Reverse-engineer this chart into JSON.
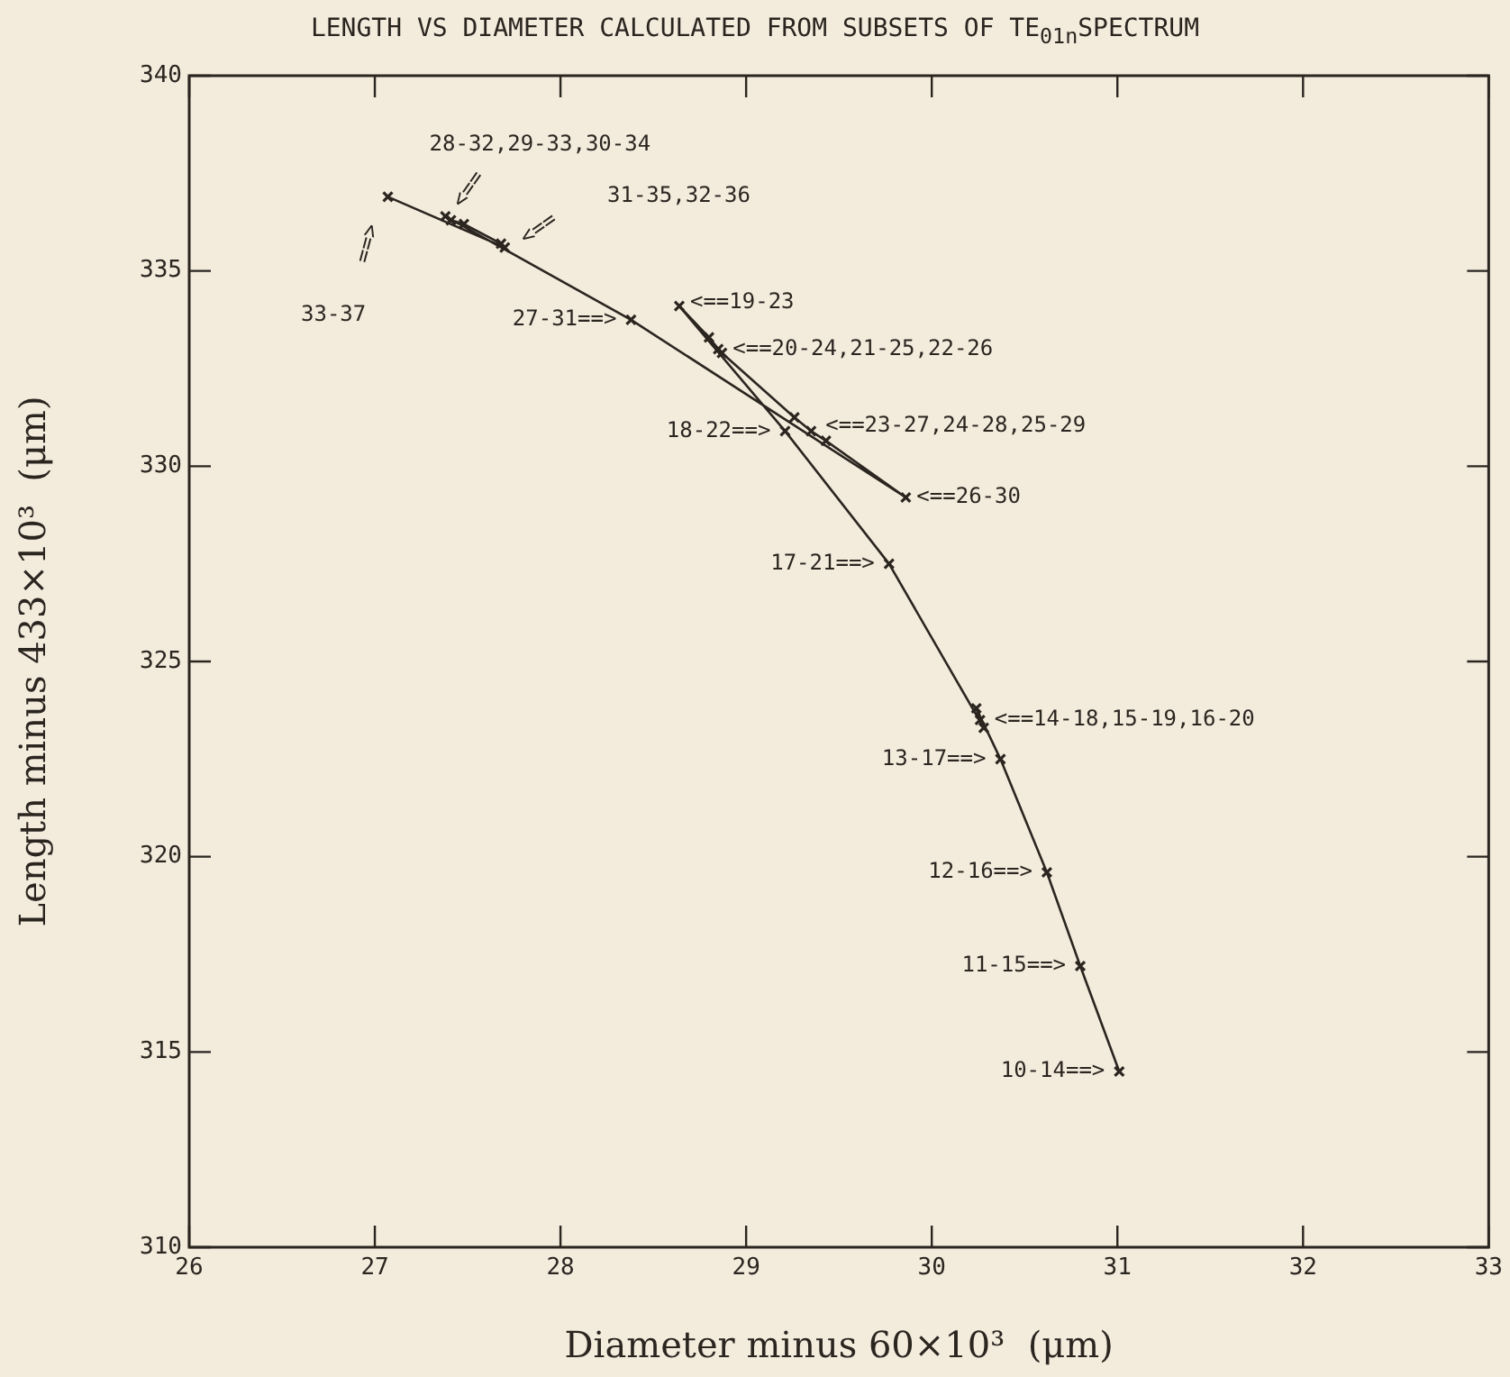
{
  "chart_data": {
    "type": "line",
    "title": "LENGTH VS DIAMETER CALCULATED FROM SUBSETS OF TE$_{01n}$SPECTRUM",
    "xlabel": "Diameter minus 60×10³  (μm)",
    "ylabel": "Length minus 433×10³  (μm)",
    "series": [
      {
        "color": "#2b2520",
        "x": [
          31.01,
          30.8,
          30.62,
          30.37,
          30.24,
          30.26,
          30.28,
          29.77,
          29.21,
          28.64,
          28.8,
          28.85,
          28.87,
          29.26,
          29.35,
          29.43,
          29.86,
          28.38,
          27.38,
          27.41,
          27.48,
          27.68,
          27.7,
          27.07
        ],
        "values": [
          314.5,
          317.2,
          319.6,
          322.5,
          323.8,
          323.5,
          323.3,
          327.5,
          330.9,
          334.1,
          333.3,
          333.0,
          332.9,
          331.25,
          330.9,
          330.65,
          329.2,
          333.75,
          336.4,
          336.3,
          336.2,
          335.7,
          335.6,
          336.9
        ]
      }
    ],
    "xlim": [
      26,
      33
    ],
    "xticks": [
      26,
      27,
      28,
      29,
      30,
      31,
      32,
      33
    ],
    "ylim": [
      310,
      340
    ],
    "yticks": [
      310,
      315,
      320,
      325,
      330,
      335,
      340
    ],
    "grid": false,
    "legend": false,
    "marker": "cross",
    "line_style": "solid",
    "annotations": [
      {
        "text": "10-14==>",
        "x": 31.01,
        "y": 314.5
      },
      {
        "text": "11-15==>",
        "x": 30.8,
        "y": 317.2
      },
      {
        "text": "12-16==>",
        "x": 30.62,
        "y": 319.6
      },
      {
        "text": "13-17==>",
        "x": 30.37,
        "y": 322.5
      },
      {
        "text": "<==14-18,15-19,16-20",
        "x": 30.26,
        "y": 323.5
      },
      {
        "text": "17-21==>",
        "x": 29.77,
        "y": 327.5
      },
      {
        "text": "18-22==>",
        "x": 29.21,
        "y": 330.9
      },
      {
        "text": "<==19-23",
        "x": 28.64,
        "y": 334.1
      },
      {
        "text": "<==20-24,21-25,22-26",
        "x": 28.85,
        "y": 333.0
      },
      {
        "text": "<==23-27,24-28,25-29",
        "x": 29.35,
        "y": 330.9
      },
      {
        "text": "<==26-30",
        "x": 29.86,
        "y": 329.2
      },
      {
        "text": "27-31==>",
        "x": 28.38,
        "y": 333.75
      },
      "31-35,32-36",
      {
        "text": "28-32,29-33,30-34",
        "x": 27.41,
        "y": 336.3
      },
      "33-37",
      {
        "text": "<==",
        "x": 27.69,
        "y": 335.7
      },
      {
        "text": "<==",
        "x": 27.41,
        "y": 336.3
      },
      {
        "text": "==>",
        "x": 27.07,
        "y": 336.9
      }
    ]
  }
}
